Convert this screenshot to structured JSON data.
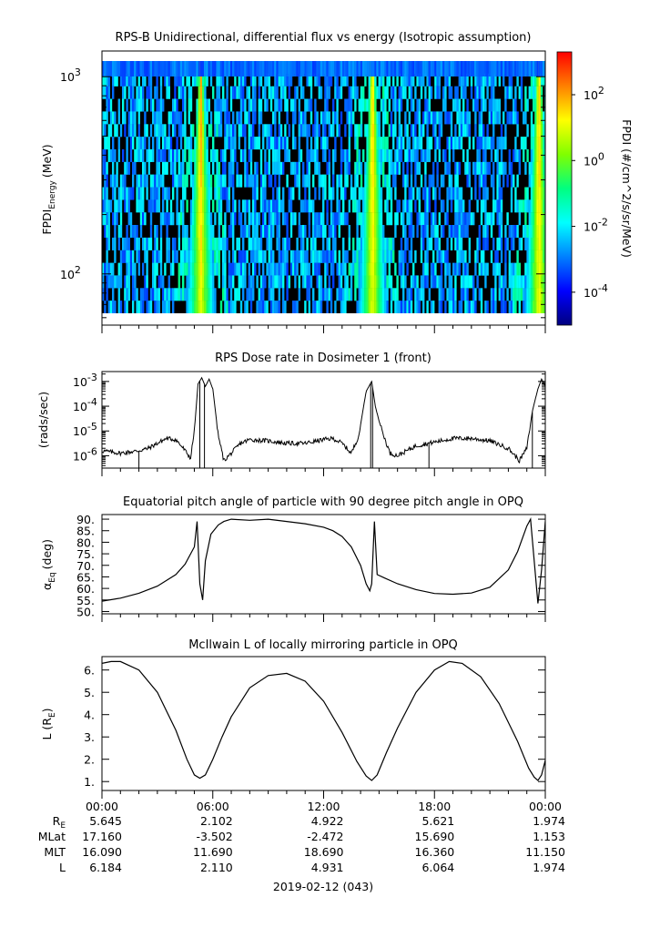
{
  "chart_data": [
    {
      "type": "heatmap",
      "title": "RPS-B  Unidirectional, differential flux vs energy (Isotropic assumption)",
      "ylabel_main": "FPDI",
      "ylabel_sub": "Energy",
      "ylabel_unit": "(MeV)",
      "y_scale": "log",
      "ylim": [
        55,
        1350
      ],
      "y_ticks": [
        {
          "value": 100,
          "base": "10",
          "exp": "2"
        },
        {
          "value": 1000,
          "base": "10",
          "exp": "3"
        }
      ],
      "colorbar": {
        "label": "FPDI (#/cm^2/s/sr/MeV)",
        "scale": "log",
        "range_exp": [
          -5,
          3.3
        ],
        "ticks": [
          {
            "exp": -4,
            "base": "10",
            "sup": "-4"
          },
          {
            "exp": -2,
            "base": "10",
            "sup": "-2"
          },
          {
            "exp": 0,
            "base": "10",
            "sup": "0"
          },
          {
            "exp": 2,
            "base": "10",
            "sup": "2"
          }
        ],
        "colors": [
          "#00007f",
          "#0000ff",
          "#0080ff",
          "#00ffff",
          "#00ff80",
          "#80ff00",
          "#ffff00",
          "#ff8000",
          "#ff0000"
        ]
      },
      "peaks_hours": [
        5.3,
        14.6,
        23.6
      ],
      "colors": {
        "background": "#000000",
        "low": "#0000cc"
      }
    },
    {
      "type": "line",
      "title": "RPS  Dose rate in Dosimeter 1 (front)",
      "ylabel": "(rads/sec)",
      "y_scale": "log",
      "ylim_exp": [
        -6.5,
        -2.6
      ],
      "y_ticks": [
        {
          "exp": -6,
          "base": "10",
          "sup": "-6"
        },
        {
          "exp": -5,
          "base": "10",
          "sup": "-5"
        },
        {
          "exp": -4,
          "base": "10",
          "sup": "-4"
        },
        {
          "exp": -3,
          "base": "10",
          "sup": "-3"
        }
      ],
      "series": [
        {
          "x": [
            0,
            0.5,
            1,
            1.5,
            2,
            2.5,
            3,
            3.5,
            4,
            4.4,
            4.8,
            5.0,
            5.2,
            5.4,
            5.6,
            5.8,
            6.0,
            6.3,
            6.6,
            7,
            7.5,
            8,
            9,
            10,
            11,
            12,
            12.5,
            13,
            13.5,
            13.9,
            14.3,
            14.6,
            14.8,
            15.0,
            15.3,
            15.6,
            16,
            17,
            18,
            19,
            20,
            21,
            22,
            22.6,
            23.0,
            23.3,
            23.6,
            23.8,
            24.0
          ],
          "y_exp": [
            -5.8,
            -5.85,
            -5.9,
            -5.85,
            -5.8,
            -5.7,
            -5.5,
            -5.3,
            -5.35,
            -5.7,
            -6.1,
            -5.0,
            -3.1,
            -2.85,
            -3.2,
            -2.9,
            -3.3,
            -5.2,
            -6.2,
            -5.9,
            -5.5,
            -5.35,
            -5.4,
            -5.5,
            -5.5,
            -5.35,
            -5.3,
            -5.5,
            -5.9,
            -5.2,
            -3.4,
            -3.0,
            -4.0,
            -4.6,
            -5.3,
            -5.9,
            -6.0,
            -5.6,
            -5.45,
            -5.3,
            -5.3,
            -5.4,
            -5.7,
            -6.2,
            -5.7,
            -4.2,
            -3.3,
            -2.9,
            -3.2
          ]
        }
      ],
      "colors": {
        "line": "#000000"
      }
    },
    {
      "type": "line",
      "title": "Equatorial pitch angle of particle with 90 degree pitch angle in OPQ",
      "ylabel_main": "α",
      "ylabel_sub": "Eq",
      "ylabel_unit": "(deg)",
      "ylim": [
        49,
        92
      ],
      "y_ticks": [
        50,
        55,
        60,
        65,
        70,
        75,
        80,
        85,
        90
      ],
      "y_tick_labels": [
        "50.",
        "55.",
        "60.",
        "65.",
        "70.",
        "75.",
        "80.",
        "85.",
        "90."
      ],
      "series": [
        {
          "x": [
            0,
            1,
            2,
            3,
            4,
            4.5,
            5.0,
            5.15,
            5.3,
            5.45,
            5.6,
            5.9,
            6.3,
            6.6,
            7,
            8,
            9,
            10,
            11,
            12,
            12.5,
            13,
            13.5,
            14,
            14.3,
            14.5,
            14.6,
            14.75,
            14.9,
            15.3,
            16,
            17,
            18,
            19,
            20,
            21,
            22,
            22.5,
            23.0,
            23.2,
            23.4,
            23.6,
            23.8,
            24.0
          ],
          "y": [
            54.5,
            55.8,
            57.9,
            61.0,
            66.0,
            70.5,
            78.0,
            89.0,
            62.0,
            55.0,
            72.0,
            83.5,
            87.5,
            89.0,
            90.0,
            89.5,
            90.0,
            89.0,
            88.0,
            86.5,
            85.0,
            82.5,
            78.0,
            70.0,
            62.0,
            59.0,
            62.0,
            89.0,
            66.0,
            64.5,
            62.0,
            59.5,
            57.8,
            57.5,
            58.0,
            60.5,
            68.0,
            76.0,
            87.0,
            90.0,
            72.0,
            53.5,
            68.0,
            89.0
          ]
        }
      ],
      "colors": {
        "line": "#000000"
      }
    },
    {
      "type": "line",
      "title": "McIlwain L of locally mirroring particle in OPQ",
      "ylabel_main": "L (R",
      "ylabel_sub": "E",
      "ylabel_unit": ")",
      "ylim": [
        0.6,
        6.6
      ],
      "y_ticks": [
        1,
        2,
        3,
        4,
        5,
        6
      ],
      "y_tick_labels": [
        "1.",
        "2.",
        "3.",
        "4.",
        "5.",
        "6."
      ],
      "series": [
        {
          "x": [
            0,
            0.5,
            1,
            2,
            3,
            4,
            4.6,
            5.0,
            5.3,
            5.6,
            6.0,
            6.5,
            7,
            8,
            9,
            10,
            11,
            12,
            13,
            13.8,
            14.3,
            14.6,
            14.9,
            15.4,
            16,
            17,
            18,
            18.8,
            19.5,
            20.5,
            21.5,
            22.5,
            23.1,
            23.4,
            23.6,
            23.8,
            24.0
          ],
          "y": [
            6.3,
            6.38,
            6.38,
            6.0,
            5.0,
            3.3,
            2.0,
            1.3,
            1.15,
            1.3,
            2.0,
            3.0,
            3.9,
            5.2,
            5.75,
            5.85,
            5.5,
            4.6,
            3.2,
            1.9,
            1.25,
            1.05,
            1.3,
            2.3,
            3.4,
            5.0,
            6.0,
            6.38,
            6.3,
            5.7,
            4.5,
            2.8,
            1.6,
            1.2,
            1.05,
            1.3,
            1.95
          ]
        }
      ],
      "colors": {
        "line": "#000000"
      }
    }
  ],
  "x_axis": {
    "range_hours": [
      0,
      24
    ],
    "major_hours": [
      0,
      6,
      12,
      18,
      24
    ],
    "tick_labels": [
      "00:00",
      "06:00",
      "12:00",
      "18:00",
      "00:00"
    ],
    "date_label": "2019-02-12 (043)"
  },
  "ephemeris": {
    "rows": [
      {
        "name": "R",
        "sub": "E",
        "values": [
          "5.645",
          "2.102",
          "4.922",
          "5.621",
          "1.974"
        ]
      },
      {
        "name": "MLat",
        "sub": "",
        "values": [
          "17.160",
          "-3.502",
          "-2.472",
          "15.690",
          "1.153"
        ]
      },
      {
        "name": "MLT",
        "sub": "",
        "values": [
          "16.090",
          "11.690",
          "18.690",
          "16.360",
          "11.150"
        ]
      },
      {
        "name": "L",
        "sub": "",
        "values": [
          "6.184",
          "2.110",
          "4.931",
          "6.064",
          "1.974"
        ]
      }
    ]
  }
}
